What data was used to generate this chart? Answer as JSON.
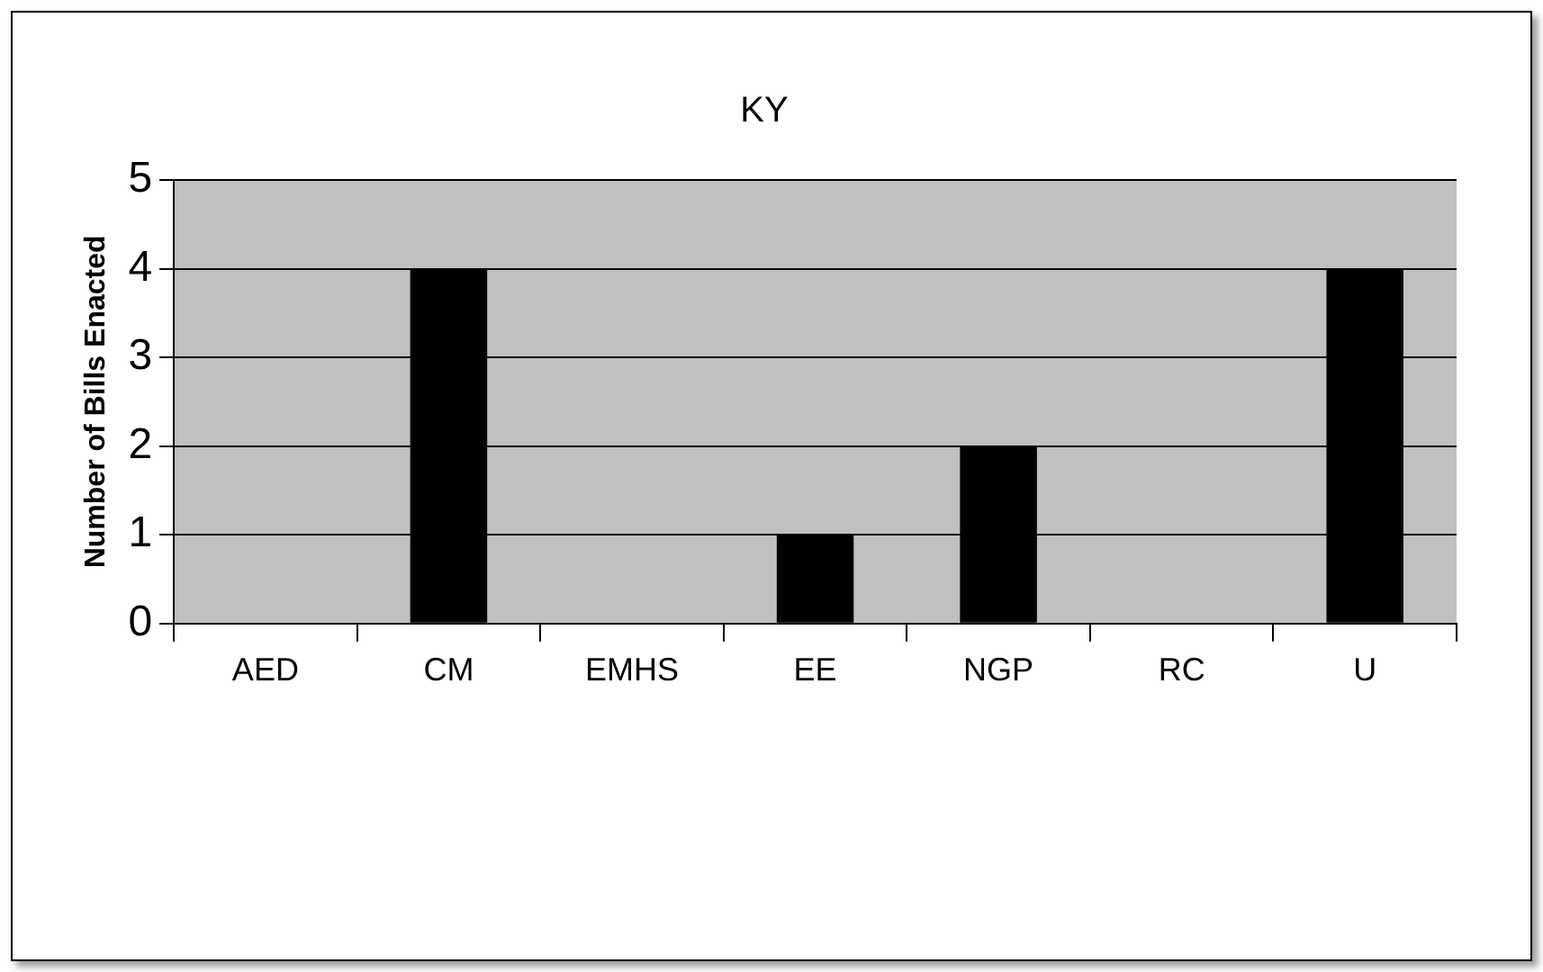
{
  "chart_data": {
    "type": "bar",
    "title": "KY",
    "ylabel": "Number of Bills Enacted",
    "categories": [
      "AED",
      "CM",
      "EMHS",
      "EE",
      "NGP",
      "RC",
      "U"
    ],
    "values": [
      0,
      4,
      0,
      1,
      2,
      0,
      4
    ],
    "color": "#000000",
    "ylim": [
      0,
      5
    ],
    "yticks": [
      0,
      1,
      2,
      3,
      4,
      5
    ],
    "grid": "y",
    "legend": false
  }
}
